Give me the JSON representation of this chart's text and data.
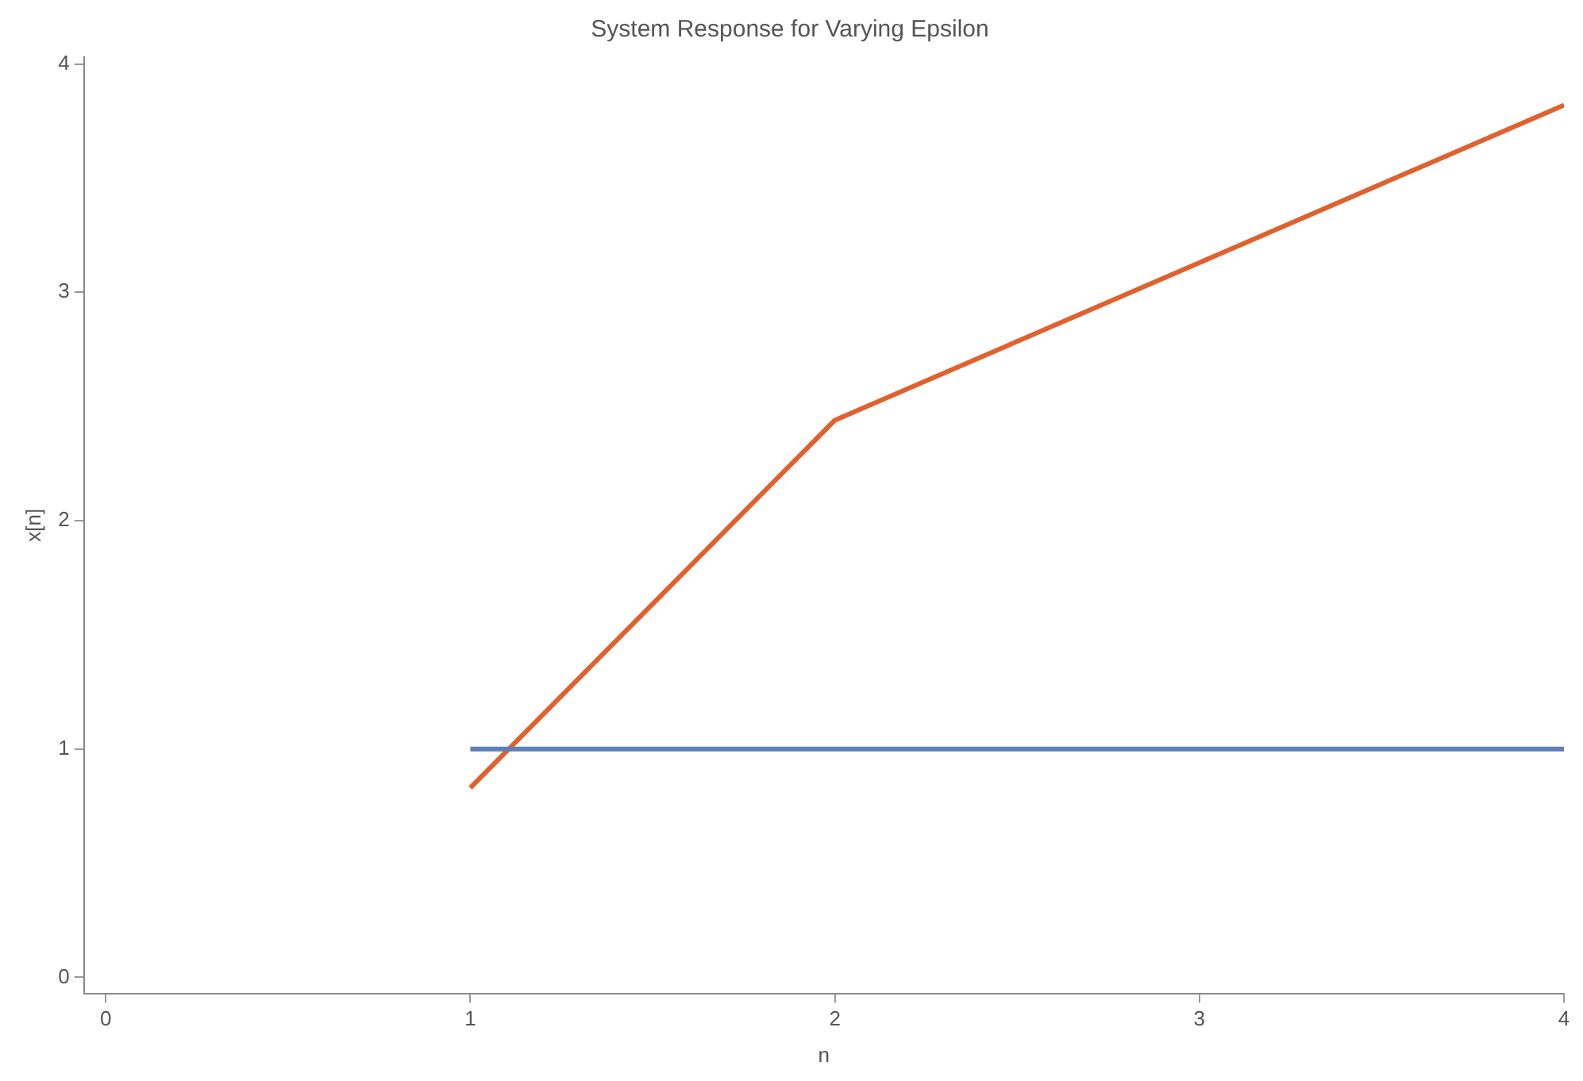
{
  "chart_data": {
    "type": "line",
    "title": "System Response for Varying Epsilon",
    "xlabel": "n",
    "ylabel": "x[n]",
    "series": [
      {
        "color": "#5e81b5",
        "x": [
          1,
          2,
          3,
          4
        ],
        "values": [
          1,
          1,
          1,
          1
        ]
      },
      {
        "color": "#e0612d",
        "x": [
          1,
          2,
          3,
          4
        ],
        "values": [
          0.83,
          2.44,
          3.13,
          3.82
        ]
      }
    ],
    "xlim": [
      -0.06,
      4
    ],
    "xticks": [
      0,
      1,
      2,
      3,
      4
    ],
    "ylim": [
      -0.07,
      4.03
    ],
    "yticks": [
      0,
      1,
      2,
      3,
      4
    ],
    "grid": false,
    "legend": false,
    "marker": "none",
    "line_style": "solid"
  }
}
